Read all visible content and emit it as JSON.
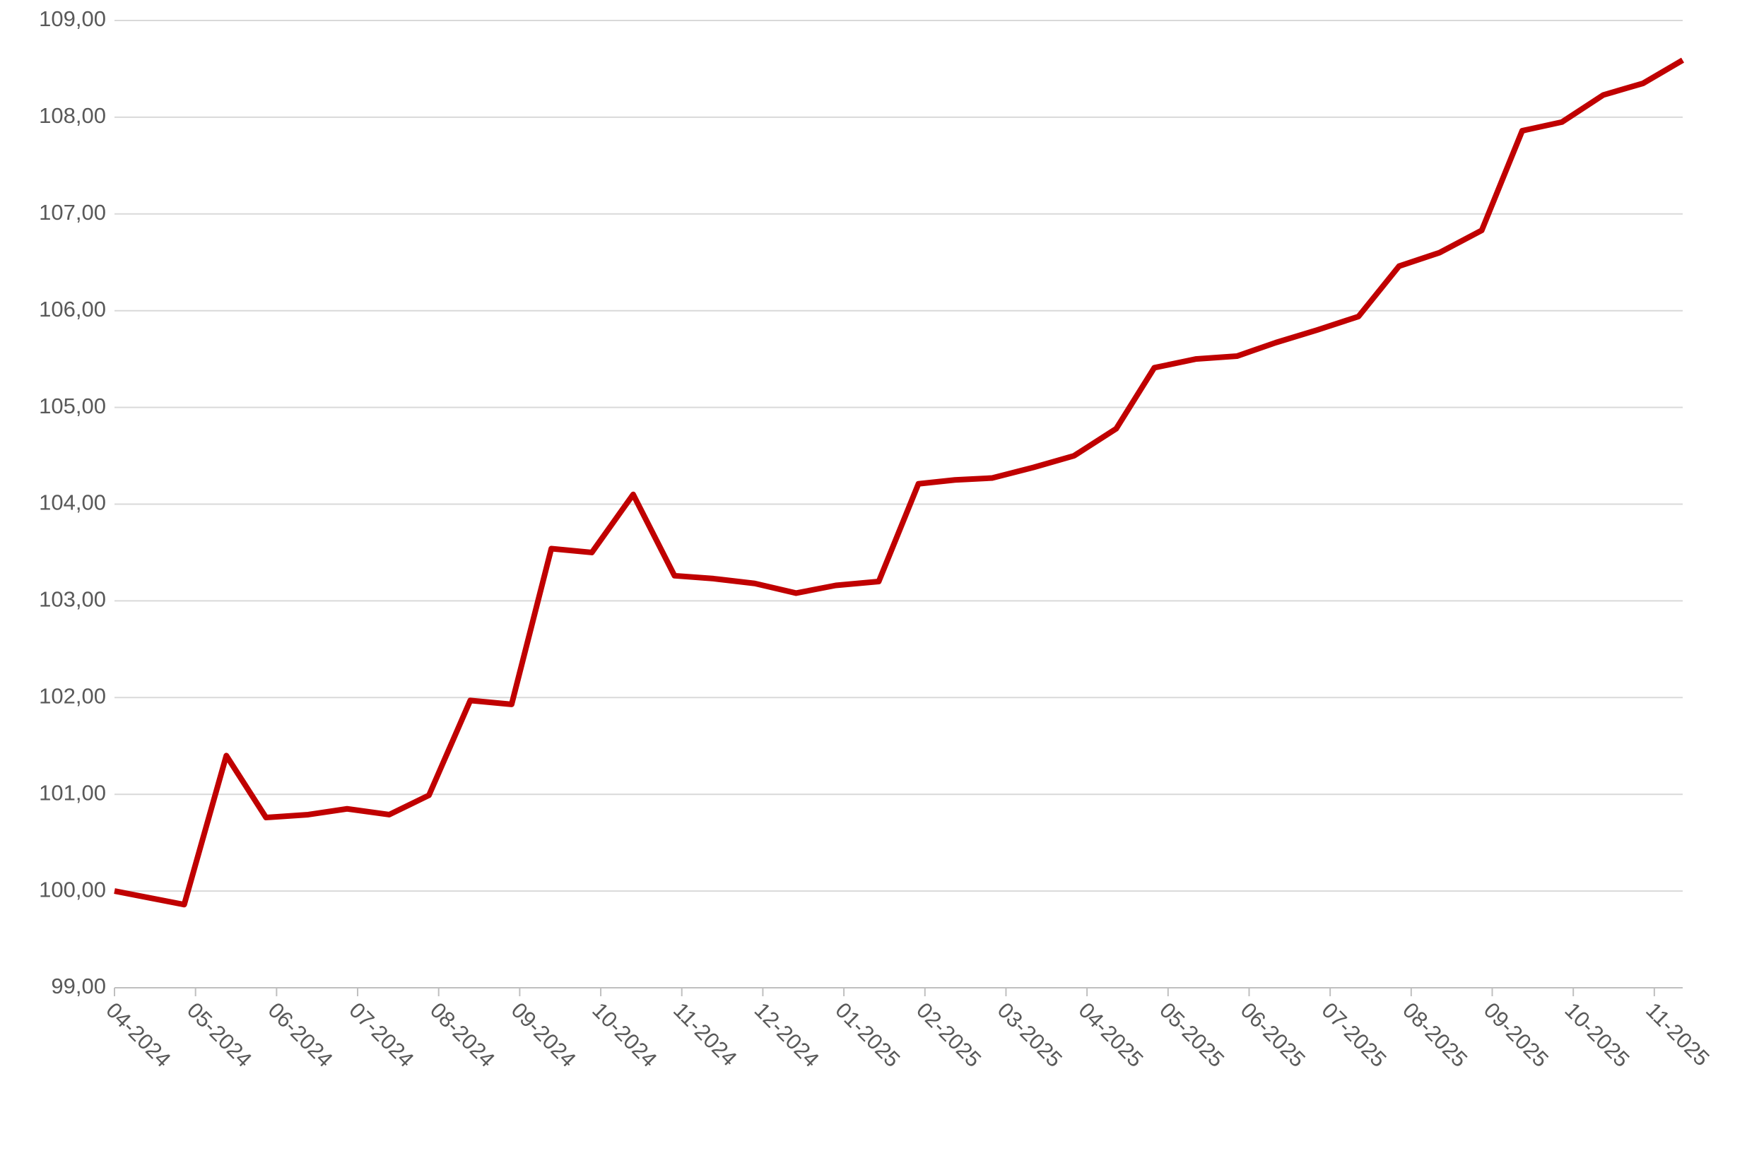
{
  "chart_data": {
    "type": "line",
    "x": [
      0,
      0.43,
      0.86,
      1.38,
      1.87,
      2.39,
      2.87,
      3.39,
      3.88,
      4.39,
      4.9,
      5.39,
      5.89,
      6.4,
      6.91,
      7.39,
      7.9,
      8.41,
      8.9,
      9.43,
      9.92,
      10.37,
      10.83,
      11.34,
      11.84,
      12.36,
      12.83,
      13.34,
      13.85,
      14.33,
      14.84,
      15.35,
      15.85,
      16.35,
      16.87,
      17.37,
      17.86,
      18.37,
      18.86,
      19.35
    ],
    "series": [
      {
        "color": "#c00000",
        "values": [
          100.0,
          99.93,
          99.86,
          101.4,
          100.76,
          100.79,
          100.85,
          100.79,
          100.99,
          101.97,
          101.93,
          103.54,
          103.5,
          104.1,
          103.26,
          103.23,
          103.18,
          103.08,
          103.16,
          103.2,
          104.21,
          104.25,
          104.27,
          104.38,
          104.5,
          104.78,
          105.41,
          105.5,
          105.53,
          105.67,
          105.8,
          105.94,
          106.46,
          106.6,
          106.83,
          107.86,
          107.95,
          108.23,
          108.35,
          108.59
        ]
      }
    ],
    "xlim": [
      0,
      19.35
    ],
    "xticks": [
      {
        "value": 0,
        "label": "04-2024"
      },
      {
        "value": 1,
        "label": "05-2024"
      },
      {
        "value": 2,
        "label": "06-2024"
      },
      {
        "value": 3,
        "label": "07-2024"
      },
      {
        "value": 4,
        "label": "08-2024"
      },
      {
        "value": 5,
        "label": "09-2024"
      },
      {
        "value": 6,
        "label": "10-2024"
      },
      {
        "value": 7,
        "label": "11-2024"
      },
      {
        "value": 8,
        "label": "12-2024"
      },
      {
        "value": 9,
        "label": "01-2025"
      },
      {
        "value": 10,
        "label": "02-2025"
      },
      {
        "value": 11,
        "label": "03-2025"
      },
      {
        "value": 12,
        "label": "04-2025"
      },
      {
        "value": 13,
        "label": "05-2025"
      },
      {
        "value": 14,
        "label": "06-2025"
      },
      {
        "value": 15,
        "label": "07-2025"
      },
      {
        "value": 16,
        "label": "08-2025"
      },
      {
        "value": 17,
        "label": "09-2025"
      },
      {
        "value": 18,
        "label": "10-2025"
      },
      {
        "value": 19,
        "label": "11-2025"
      }
    ],
    "ylim": [
      99,
      109
    ],
    "yticks": [
      {
        "value": 99,
        "label": "99,00"
      },
      {
        "value": 100,
        "label": "100,00"
      },
      {
        "value": 101,
        "label": "101,00"
      },
      {
        "value": 102,
        "label": "102,00"
      },
      {
        "value": 103,
        "label": "103,00"
      },
      {
        "value": 104,
        "label": "104,00"
      },
      {
        "value": 105,
        "label": "105,00"
      },
      {
        "value": 106,
        "label": "106,00"
      },
      {
        "value": 107,
        "label": "107,00"
      },
      {
        "value": 108,
        "label": "108,00"
      },
      {
        "value": 109,
        "label": "109,00"
      }
    ],
    "grid": true
  }
}
